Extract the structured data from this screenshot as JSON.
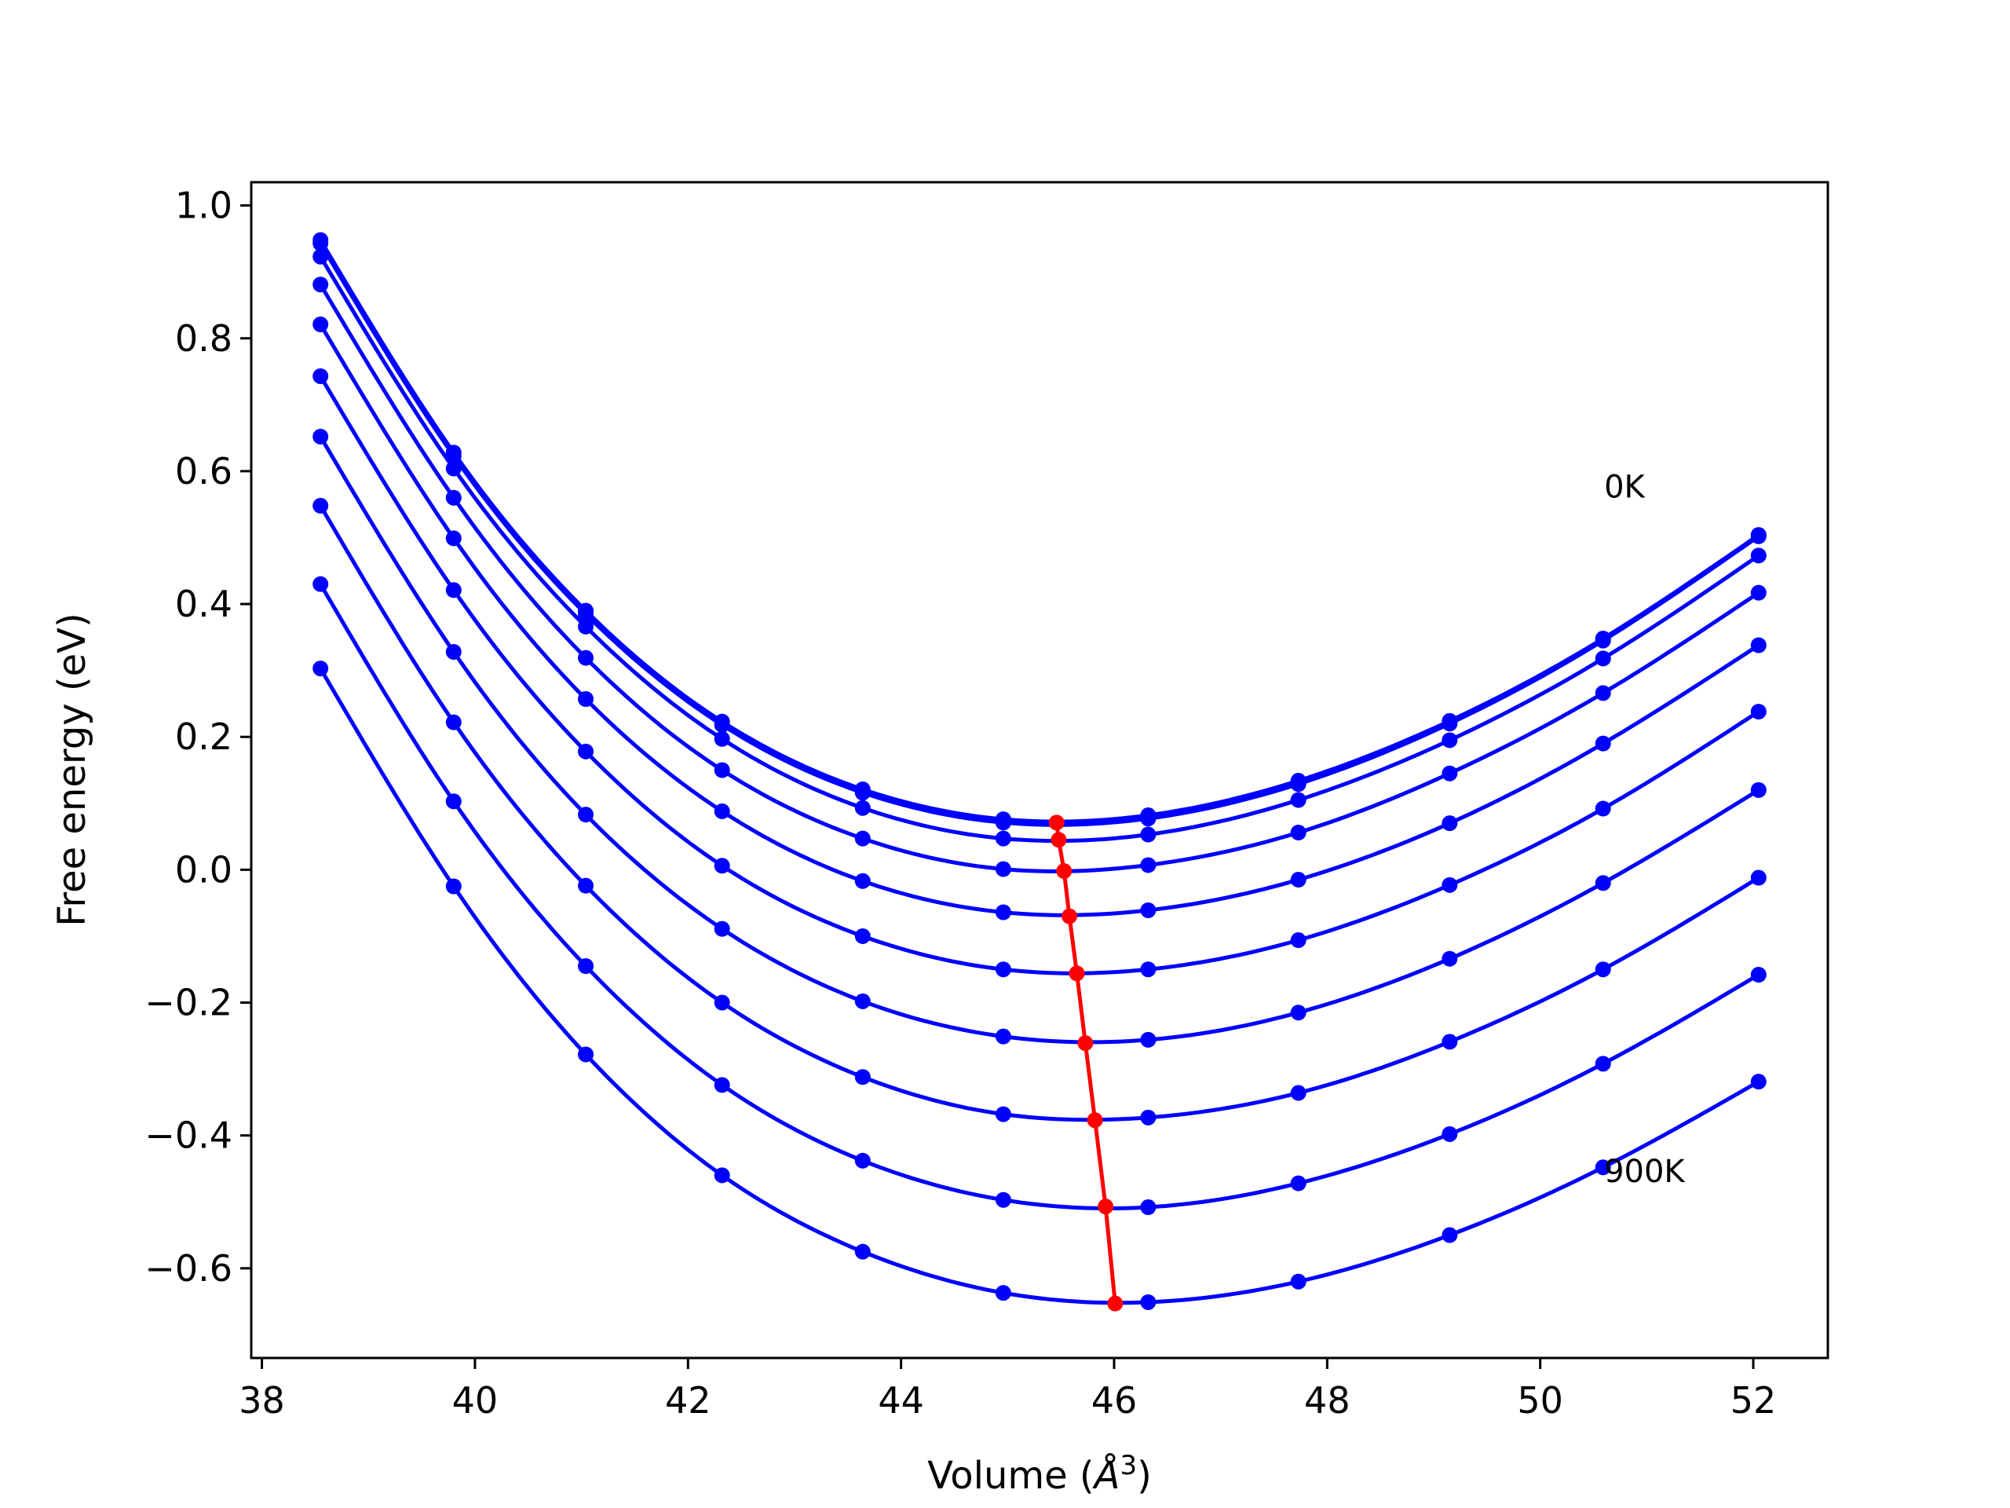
{
  "chart_data": {
    "type": "line",
    "title": "",
    "xlabel": "Volume (Å³)",
    "xlabel_parts": {
      "prefix": "Volume (",
      "unit": "Å",
      "exponent": "3",
      "suffix": ")"
    },
    "ylabel": "Free energy (eV)",
    "xlim": [
      37.9,
      52.7
    ],
    "ylim": [
      -0.735,
      1.035
    ],
    "xticks": [
      38,
      40,
      42,
      44,
      46,
      48,
      50,
      52
    ],
    "xtick_labels": [
      "38",
      "40",
      "42",
      "44",
      "46",
      "48",
      "50",
      "52"
    ],
    "yticks": [
      -0.6,
      -0.4,
      -0.2,
      0.0,
      0.2,
      0.4,
      0.6,
      0.8,
      1.0
    ],
    "ytick_labels": [
      "−0.6",
      "−0.4",
      "−0.2",
      "0.0",
      "0.2",
      "0.4",
      "0.6",
      "0.8",
      "1.0"
    ],
    "grid": false,
    "legend": "none",
    "colors": {
      "series": "#0000ff",
      "minima": "#ff0000",
      "frame": "#000000"
    },
    "volumes": [
      38.55,
      39.8,
      41.04,
      42.32,
      43.64,
      44.96,
      46.32,
      47.73,
      49.15,
      50.59,
      52.05
    ],
    "series": [
      {
        "values": [
          0.948,
          0.628,
          0.39,
          0.223,
          0.121,
          0.076,
          0.082,
          0.134,
          0.224,
          0.348,
          0.504
        ]
      },
      {
        "values": [
          0.943,
          0.623,
          0.385,
          0.218,
          0.116,
          0.071,
          0.077,
          0.129,
          0.22,
          0.345,
          0.502
        ]
      },
      {
        "values": [
          0.923,
          0.604,
          0.366,
          0.197,
          0.093,
          0.047,
          0.053,
          0.105,
          0.195,
          0.318,
          0.473
        ]
      },
      {
        "values": [
          0.881,
          0.56,
          0.319,
          0.15,
          0.047,
          0.001,
          0.007,
          0.056,
          0.145,
          0.266,
          0.417
        ]
      },
      {
        "values": [
          0.821,
          0.499,
          0.257,
          0.088,
          -0.017,
          -0.064,
          -0.061,
          -0.015,
          0.07,
          0.19,
          0.338
        ]
      },
      {
        "values": [
          0.743,
          0.421,
          0.178,
          0.006,
          -0.1,
          -0.15,
          -0.15,
          -0.106,
          -0.023,
          0.092,
          0.238
        ]
      },
      {
        "values": [
          0.652,
          0.328,
          0.083,
          -0.089,
          -0.198,
          -0.251,
          -0.256,
          -0.215,
          -0.134,
          -0.02,
          0.12
        ]
      },
      {
        "values": [
          0.548,
          0.222,
          -0.024,
          -0.2,
          -0.312,
          -0.368,
          -0.373,
          -0.336,
          -0.259,
          -0.15,
          -0.012
        ]
      },
      {
        "values": [
          0.43,
          0.103,
          -0.145,
          -0.324,
          -0.438,
          -0.497,
          -0.508,
          -0.472,
          -0.398,
          -0.292,
          -0.158
        ]
      },
      {
        "values": [
          0.303,
          -0.025,
          -0.278,
          -0.46,
          -0.575,
          -0.637,
          -0.651,
          -0.62,
          -0.55,
          -0.448,
          -0.319
        ]
      }
    ],
    "minima": {
      "x": [
        45.46,
        45.48,
        45.53,
        45.58,
        45.65,
        45.73,
        45.82,
        45.92,
        46.01
      ],
      "y": [
        0.071,
        0.045,
        -0.002,
        -0.07,
        -0.156,
        -0.261,
        -0.377,
        -0.507,
        -0.653
      ]
    },
    "annotations": [
      {
        "text": "0K",
        "x": 50.6,
        "y": 0.56
      },
      {
        "text": "900K",
        "x": 50.6,
        "y": -0.47
      }
    ]
  }
}
